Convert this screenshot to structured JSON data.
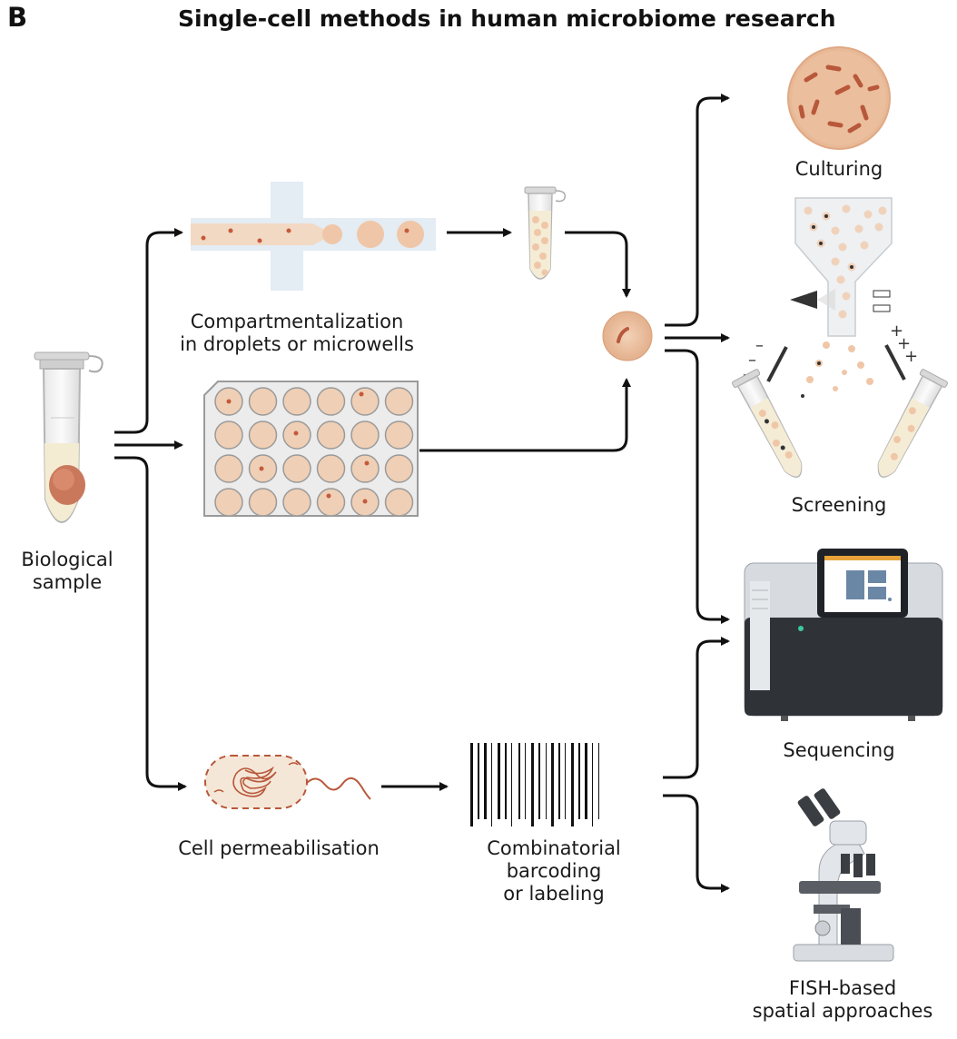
{
  "panel_letter": "B",
  "title": "Single-cell methods in human microbiome research",
  "labels": {
    "sample_line1": "Biological",
    "sample_line2": "sample",
    "compart_line1": "Compartmentalization",
    "compart_line2": "in droplets or microwells",
    "perm": "Cell permeabilisation",
    "barcode_line1": "Combinatorial",
    "barcode_line2": "barcoding",
    "barcode_line3": "or labeling",
    "culturing": "Culturing",
    "screening": "Screening",
    "sequencing": "Sequencing",
    "fish_line1": "FISH-based",
    "fish_line2": "spatial approaches"
  },
  "colors": {
    "cell": "#eac1a1",
    "cell_dark": "#b8583a",
    "liquid": "#f4efd8",
    "plate": "#e9e9e9",
    "accent": "#e8a33a",
    "screen": "#6b87a6",
    "arrow": "#111111"
  }
}
